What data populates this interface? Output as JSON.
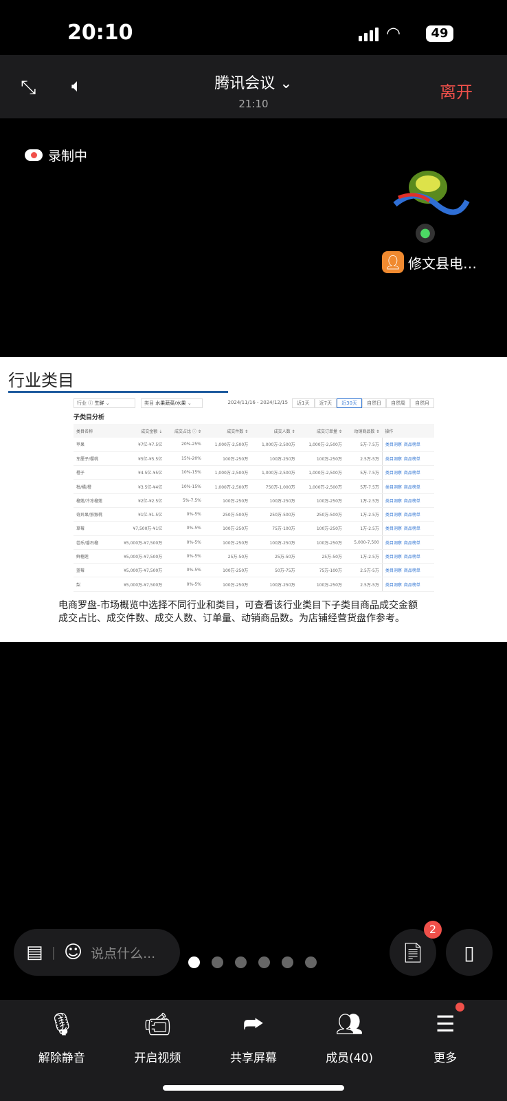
{
  "status": {
    "time": "20:10",
    "battery": "49"
  },
  "header": {
    "title": "腾讯会议",
    "time": "21:10",
    "leave": "离开"
  },
  "recording": "录制中",
  "speaker": {
    "name": "修文县电…"
  },
  "slide": {
    "title": "行业类目",
    "filters": {
      "industry_label": "行业 ⓘ",
      "industry": "生鲜",
      "category_label": "类目",
      "category": "水果蔬菜/水果",
      "date_range": "2024/11/16 - 2024/12/15",
      "ranges": [
        "近1天",
        "近7天",
        "近30天",
        "自然日",
        "自然周",
        "自然月"
      ],
      "active_range": "近30天"
    },
    "section": "子类目分析",
    "columns": [
      "类目名称",
      "成交金额 ⇣",
      "成交占比 ⓘ ⇕",
      "成交件数 ⇕",
      "成交人数 ⇕",
      "成交订单量 ⇕",
      "动销商品数 ⇕",
      "操作"
    ],
    "rows": [
      [
        "苹果",
        "¥7亿-¥7.5亿",
        "20%-25%",
        "1,000万-2,500万",
        "1,000万-2,500万",
        "1,000万-2,500万",
        "5万-7.5万"
      ],
      [
        "车厘子/樱桃",
        "¥5亿-¥5.5亿",
        "15%-20%",
        "100万-250万",
        "100万-250万",
        "100万-250万",
        "2.5万-5万"
      ],
      [
        "橙子",
        "¥4.5亿-¥5亿",
        "10%-15%",
        "1,000万-2,500万",
        "1,000万-2,500万",
        "1,000万-2,500万",
        "5万-7.5万"
      ],
      [
        "柑/橘/橙",
        "¥3.5亿-¥4亿",
        "10%-15%",
        "1,000万-2,500万",
        "750万-1,000万",
        "1,000万-2,500万",
        "5万-7.5万"
      ],
      [
        "榴莲/冷冻榴莲",
        "¥2亿-¥2.5亿",
        "5%-7.5%",
        "100万-250万",
        "100万-250万",
        "100万-250万",
        "1万-2.5万"
      ],
      [
        "奇异果/猕猴桃",
        "¥1亿-¥1.5亿",
        "0%-5%",
        "250万-500万",
        "250万-500万",
        "250万-500万",
        "1万-2.5万"
      ],
      [
        "草莓",
        "¥7,500万-¥1亿",
        "0%-5%",
        "100万-250万",
        "75万-100万",
        "100万-250万",
        "1万-2.5万"
      ],
      [
        "芭乐/番石榴",
        "¥5,000万-¥7,500万",
        "0%-5%",
        "100万-250万",
        "100万-250万",
        "100万-250万",
        "5,000-7,500"
      ],
      [
        "鲜榴莲",
        "¥5,000万-¥7,500万",
        "0%-5%",
        "25万-50万",
        "25万-50万",
        "25万-50万",
        "1万-2.5万"
      ],
      [
        "蓝莓",
        "¥5,000万-¥7,500万",
        "0%-5%",
        "100万-250万",
        "50万-75万",
        "75万-100万",
        "2.5万-5万"
      ],
      [
        "梨",
        "¥5,000万-¥7,500万",
        "0%-5%",
        "100万-250万",
        "100万-250万",
        "100万-250万",
        "2.5万-5万"
      ]
    ],
    "actions": [
      "类目洞察",
      "商品榜单"
    ],
    "description_1": "电商罗盘-市场概览中选择不同行业和类目，可查看该行业类目下子类目商品成交金额",
    "description_2": "成交占比、成交件数、成交人数、订单量、动销商品数。为店铺经营货盘作参考。"
  },
  "chat": {
    "placeholder": "说点什么..."
  },
  "notes_badge": "2",
  "toolbar": [
    {
      "label": "解除静音",
      "icon": "mic-muted-icon"
    },
    {
      "label": "开启视频",
      "icon": "video-off-icon"
    },
    {
      "label": "共享屏幕",
      "icon": "share-screen-icon"
    },
    {
      "label": "成员(40)",
      "icon": "members-icon"
    },
    {
      "label": "更多",
      "icon": "more-icon"
    }
  ]
}
